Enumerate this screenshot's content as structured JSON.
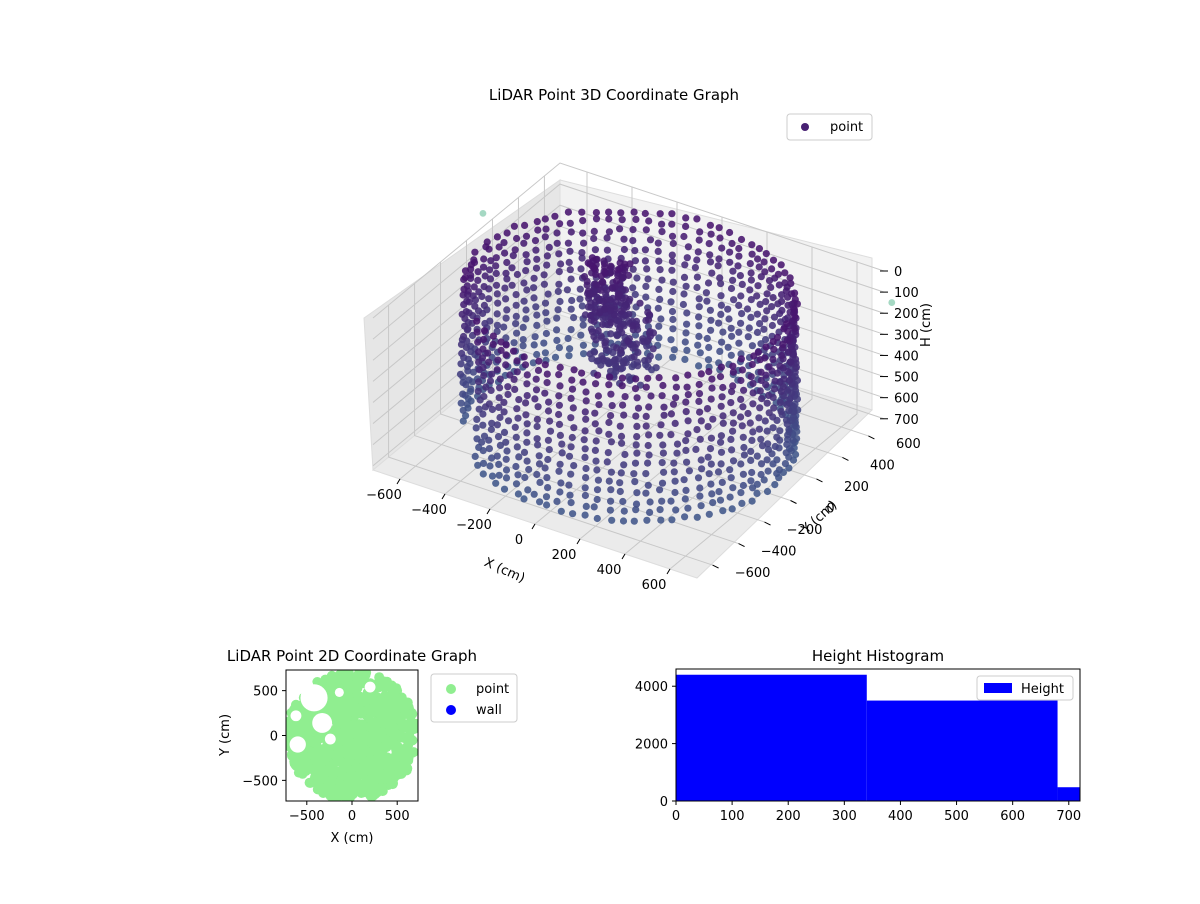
{
  "chart_data": [
    {
      "type": "scatter3d",
      "title": "LiDAR Point 3D Coordinate Graph",
      "xlabel": "X (cm)",
      "ylabel": "Y (cm)",
      "zlabel": "H (cm)",
      "xlim": [
        -720,
        720
      ],
      "ylim": [
        -720,
        720
      ],
      "zlim": [
        720,
        0
      ],
      "xticks": [
        -600,
        -400,
        -200,
        0,
        200,
        400,
        600
      ],
      "yticks": [
        -600,
        -400,
        -200,
        0,
        200,
        400,
        600
      ],
      "zticks": [
        0,
        100,
        200,
        300,
        400,
        500,
        600,
        700
      ],
      "legend": {
        "position": "top-right",
        "entries": [
          "point"
        ]
      },
      "grid": true,
      "colormap": "viridis",
      "series": [
        {
          "name": "point",
          "description": "ring wall of points approx radius 640 cm spanning heights 0-700 cm, plus interior clusters",
          "shapes": [
            {
              "kind": "ring_wall",
              "radius": 640,
              "theta_deg": [
                -125,
                205
              ],
              "z": [
                0,
                700
              ]
            },
            {
              "kind": "cluster",
              "center": [
                -60,
                60
              ],
              "spread": 130,
              "z": [
                150,
                420
              ]
            },
            {
              "kind": "cluster",
              "center": [
                -200,
                180
              ],
              "spread": 90,
              "z": [
                0,
                300
              ]
            }
          ],
          "outliers": [
            {
              "x": -820,
              "y": 300,
              "z": 60
            },
            {
              "x": 720,
              "y": 780,
              "z": 180
            }
          ]
        }
      ]
    },
    {
      "type": "scatter",
      "title": "LiDAR Point 2D Coordinate Graph",
      "xlabel": "X (cm)",
      "ylabel": "Y (cm)",
      "xlim": [
        -730,
        730
      ],
      "ylim": [
        -730,
        730
      ],
      "xticks": [
        -500,
        0,
        500
      ],
      "yticks": [
        -500,
        0,
        500
      ],
      "legend": {
        "position": "outside-right",
        "entries": [
          "point",
          "wall"
        ]
      },
      "series": [
        {
          "name": "point",
          "color": "#90ee90",
          "description": "dense filled disk radius ~720 cm with gaps on the left side"
        },
        {
          "name": "wall",
          "color": "#0000ff",
          "values": []
        }
      ]
    },
    {
      "type": "histogram",
      "title": "Height Histogram",
      "xlim": [
        0,
        720
      ],
      "ylim": [
        0,
        4600
      ],
      "xticks": [
        0,
        100,
        200,
        300,
        400,
        500,
        600,
        700
      ],
      "yticks": [
        0,
        2000,
        4000
      ],
      "legend": {
        "position": "top-right",
        "entries": [
          "Height"
        ]
      },
      "color": "#0000ff",
      "series": [
        {
          "name": "Height",
          "bins": [
            {
              "x0": 0,
              "x1": 340,
              "count": 4400
            },
            {
              "x0": 340,
              "x1": 680,
              "count": 3500
            },
            {
              "x0": 680,
              "x1": 720,
              "count": 480
            }
          ]
        }
      ]
    }
  ]
}
